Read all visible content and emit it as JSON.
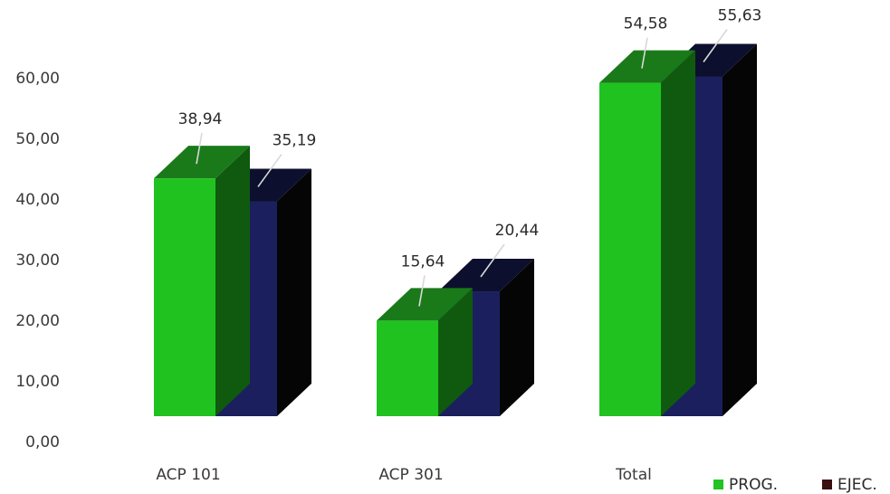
{
  "chart_data": {
    "type": "bar",
    "categories": [
      "ACP 101",
      "ACP 301",
      "Total"
    ],
    "series": [
      {
        "name": "PROG.",
        "values": [
          38.94,
          15.64,
          54.58
        ],
        "labels": [
          "38,94",
          "15,64",
          "54,58"
        ],
        "color": "#1fc21f",
        "top_color": "#1a7a1a",
        "side_color": "#0f5a0f"
      },
      {
        "name": "EJEC.",
        "values": [
          35.19,
          20.44,
          55.63
        ],
        "labels": [
          "35,19",
          "20,44",
          "55,63"
        ],
        "color": "#1b1f5e",
        "top_color": "#0d0f2e",
        "side_color": "#050505"
      }
    ],
    "ylim": [
      0,
      60
    ],
    "yticks": [
      "0,00",
      "10,00",
      "20,00",
      "30,00",
      "40,00",
      "50,00",
      "60,00"
    ],
    "legend_position": "bottom-right",
    "legend": [
      {
        "name": "PROG.",
        "swatch": "#22c322"
      },
      {
        "name": "EJEC.",
        "swatch": "#3a1010"
      }
    ],
    "style": "3d-column",
    "grid": false
  }
}
